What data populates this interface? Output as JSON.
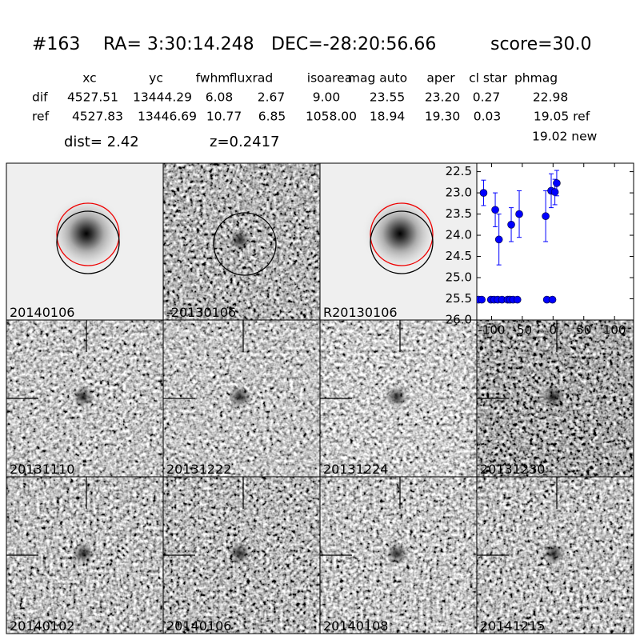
{
  "header": {
    "id": "#163",
    "ra": "RA= 3:30:14.248",
    "dec": "DEC=-28:20:56.66",
    "score": "score=30.0",
    "table": {
      "columns": [
        "xc",
        "yc",
        "fwhm",
        "fluxrad",
        "isoarea",
        "mag auto",
        "aper",
        "cl star",
        "phmag"
      ],
      "rows": [
        {
          "label": "dif",
          "cells": [
            "4527.51",
            "13444.29",
            "6.08",
            "2.67",
            "9.00",
            "23.55",
            "23.20",
            "0.27",
            "22.98"
          ]
        },
        {
          "label": "ref",
          "cells": [
            "4527.83",
            "13446.69",
            "10.77",
            "6.85",
            "1058.00",
            "18.94",
            "19.30",
            "0.03",
            "19.05 ref"
          ]
        }
      ],
      "extra": "19.02 new"
    },
    "dist": "dist=  2.42",
    "z": "z=0.2417"
  },
  "panels": [
    {
      "label": "20140106"
    },
    {
      "label": "-20130106"
    },
    {
      "label": "R20130106"
    },
    {
      "label": "20131110"
    },
    {
      "label": "20131222"
    },
    {
      "label": "20131224"
    },
    {
      "label": "20131230"
    },
    {
      "label": "20140102"
    },
    {
      "label": "20140106",
      "color": "#ff0000"
    },
    {
      "label": "20140108"
    },
    {
      "label": "20141215"
    }
  ],
  "chart_data": {
    "type": "scatter",
    "xlim": [
      -124,
      131
    ],
    "xticks": [
      -100,
      -50,
      0,
      50,
      100
    ],
    "ylim": [
      22.3,
      26.0
    ],
    "y_inverted": true,
    "yticks": [
      22.5,
      {
        "value": 23,
        "label": "23.0"
      },
      23.5,
      {
        "value": 24,
        "label": "24.0"
      },
      24.5,
      {
        "value": 25,
        "label": "25.0"
      },
      25.5,
      {
        "value": 26,
        "label": "26.0"
      }
    ],
    "series": [
      {
        "color": "#0000ff",
        "x": [
          -113,
          -94,
          -88,
          -68,
          -55,
          -12,
          -3,
          3,
          6
        ],
        "values": [
          23.0,
          23.4,
          24.1,
          23.75,
          23.5,
          23.55,
          22.95,
          22.98,
          22.77
        ],
        "errors": [
          0.3,
          0.4,
          0.6,
          0.4,
          0.55,
          0.6,
          0.4,
          0.3,
          0.3
        ]
      },
      {
        "color": "#0000ff",
        "x": [
          -121,
          -116,
          -101,
          -96,
          -90,
          -83,
          -74,
          -70,
          -65,
          -58,
          -10,
          -1
        ],
        "values": [
          25.52,
          25.52,
          25.52,
          25.52,
          25.52,
          25.52,
          25.52,
          25.52,
          25.52,
          25.52,
          25.52,
          25.52
        ]
      }
    ]
  }
}
